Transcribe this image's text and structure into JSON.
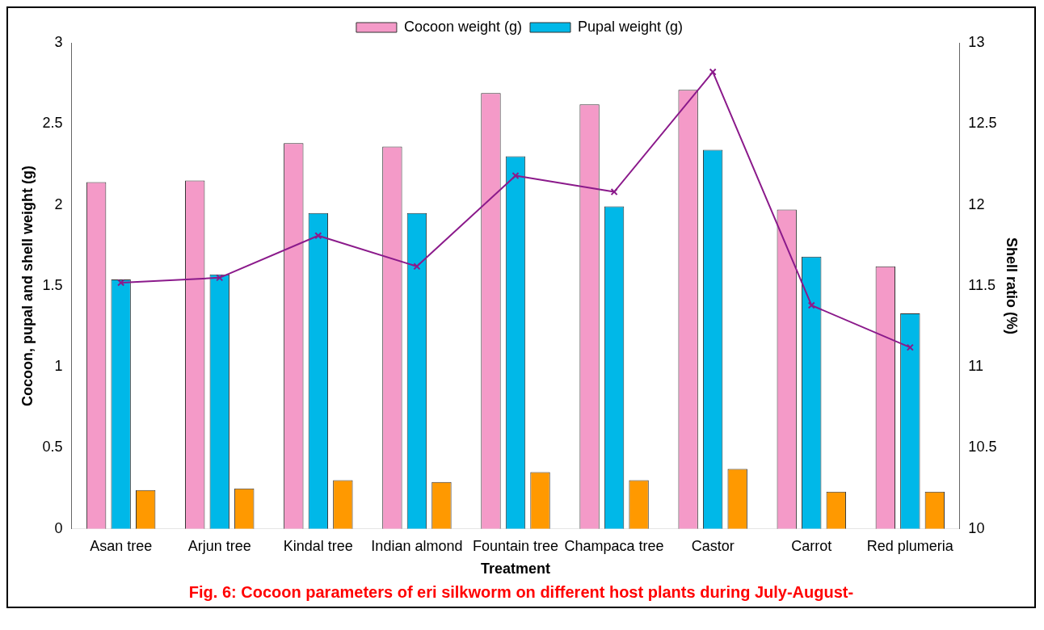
{
  "chart_data": {
    "type": "bar",
    "categories": [
      "Asan tree",
      "Arjun tree",
      "Kindal tree",
      "Indian almond",
      "Fountain tree",
      "Champaca tree",
      "Castor",
      "Carrot",
      "Red plumeria"
    ],
    "series": [
      {
        "name": "Cocoon weight (g)",
        "color": "#f49ac8",
        "values": [
          2.14,
          2.15,
          2.38,
          2.36,
          2.69,
          2.62,
          2.71,
          1.97,
          1.62
        ]
      },
      {
        "name": "Pupal weight (g)",
        "color": "#00b8e8",
        "values": [
          1.54,
          1.57,
          1.95,
          1.95,
          2.3,
          1.99,
          2.34,
          1.68,
          1.33
        ]
      },
      {
        "color": "#ff9900",
        "values": [
          0.24,
          0.25,
          0.3,
          0.29,
          0.35,
          0.3,
          0.37,
          0.23,
          0.23
        ]
      },
      {
        "type": "line",
        "axis": "y2",
        "color": "#8b1a8b",
        "marker": "cross",
        "values": [
          11.52,
          11.55,
          11.81,
          11.62,
          12.18,
          12.08,
          12.82,
          11.38,
          11.12
        ]
      }
    ],
    "xlabel": "Treatment",
    "ylabel": "Cocoon, pupal and shell weight (g)",
    "y2label": "Shell ratio (%)",
    "ylim": [
      0,
      3
    ],
    "yticks": [
      0,
      0.5,
      1,
      1.5,
      2,
      2.5,
      3
    ],
    "y2lim": [
      10,
      13
    ],
    "y2ticks": [
      10,
      10.5,
      11,
      11.5,
      12,
      12.5,
      13
    ],
    "grid": false,
    "legend": "top",
    "annotations": [
      "Fig. 6: Cocoon parameters of eri silkworm on different host plants during July-August-"
    ]
  }
}
